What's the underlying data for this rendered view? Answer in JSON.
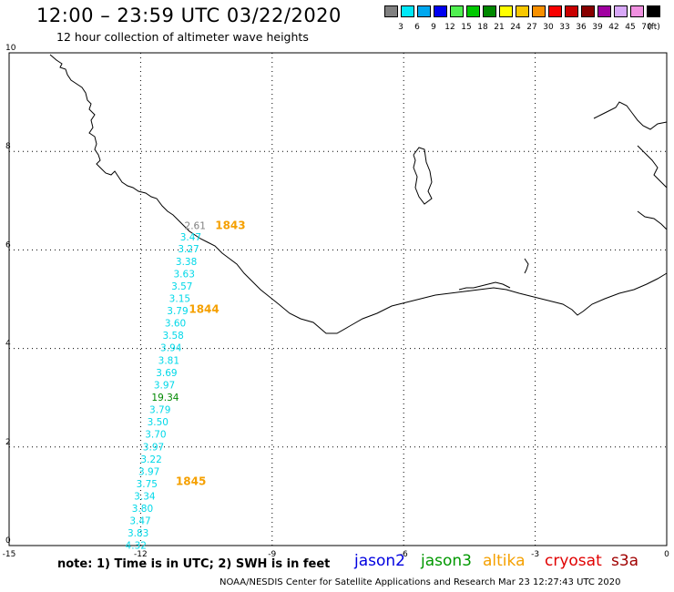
{
  "header": {
    "title": "12:00 – 23:59 UTC 03/22/2020",
    "subtitle": "12 hour collection of altimeter wave heights"
  },
  "legend": {
    "unit": "(ft)",
    "bins": [
      {
        "label": "3",
        "color": "#808080"
      },
      {
        "label": "6",
        "color": "#00e8f8"
      },
      {
        "label": "9",
        "color": "#00a8f0"
      },
      {
        "label": "12",
        "color": "#0000f0"
      },
      {
        "label": "15",
        "color": "#50f050"
      },
      {
        "label": "18",
        "color": "#00c800"
      },
      {
        "label": "21",
        "color": "#008800"
      },
      {
        "label": "24",
        "color": "#ffff00"
      },
      {
        "label": "27",
        "color": "#f8c800"
      },
      {
        "label": "30",
        "color": "#f89000"
      },
      {
        "label": "33",
        "color": "#f80000"
      },
      {
        "label": "36",
        "color": "#c80000"
      },
      {
        "label": "39",
        "color": "#880000"
      },
      {
        "label": "42",
        "color": "#a000a0"
      },
      {
        "label": "45",
        "color": "#d8a8f8"
      },
      {
        "label": "70",
        "color": "#f090e0"
      },
      {
        "label": "",
        "color": "#000000"
      }
    ]
  },
  "map": {
    "lon_ticks": [
      "-15",
      "-12",
      "-9",
      "-6",
      "-3",
      "0"
    ],
    "lat_ticks": [
      "0",
      "2",
      "4",
      "6",
      "8",
      "10"
    ],
    "lon_range": [
      -15,
      0
    ],
    "lat_range": [
      0,
      10
    ],
    "grid": "dotted",
    "pass_times": [
      {
        "label": "1843",
        "lon": -10.3,
        "lat": 6.5
      },
      {
        "label": "1844",
        "lon": -10.9,
        "lat": 4.8
      },
      {
        "label": "1845",
        "lon": -11.2,
        "lat": 1.3
      }
    ],
    "swh_readings": [
      {
        "value": "2.61",
        "lon": -11.0,
        "lat": 6.5,
        "color": "#808080"
      },
      {
        "value": "3.47",
        "lon": -11.1,
        "lat": 6.27,
        "color": "#00d8e8"
      },
      {
        "value": "3.27",
        "lon": -11.15,
        "lat": 6.03,
        "color": "#00d8e8"
      },
      {
        "value": "3.38",
        "lon": -11.2,
        "lat": 5.77,
        "color": "#00d8e8"
      },
      {
        "value": "3.63",
        "lon": -11.25,
        "lat": 5.52,
        "color": "#00d8e8"
      },
      {
        "value": "3.57",
        "lon": -11.3,
        "lat": 5.27,
        "color": "#00d8e8"
      },
      {
        "value": "3.15",
        "lon": -11.35,
        "lat": 5.02,
        "color": "#00d8e8"
      },
      {
        "value": "3.79",
        "lon": -11.4,
        "lat": 4.77,
        "color": "#00d8e8"
      },
      {
        "value": "3.60",
        "lon": -11.45,
        "lat": 4.52,
        "color": "#00d8e8"
      },
      {
        "value": "3.58",
        "lon": -11.5,
        "lat": 4.27,
        "color": "#00d8e8"
      },
      {
        "value": "3.94",
        "lon": -11.55,
        "lat": 4.02,
        "color": "#00d8e8"
      },
      {
        "value": "3.81",
        "lon": -11.6,
        "lat": 3.76,
        "color": "#00d8e8"
      },
      {
        "value": "3.69",
        "lon": -11.65,
        "lat": 3.51,
        "color": "#00d8e8"
      },
      {
        "value": "3.97",
        "lon": -11.7,
        "lat": 3.26,
        "color": "#00d8e8"
      },
      {
        "value": "19.34",
        "lon": -11.75,
        "lat": 3.01,
        "color": "#008800"
      },
      {
        "value": "3.79",
        "lon": -11.8,
        "lat": 2.76,
        "color": "#00d8e8"
      },
      {
        "value": "3.50",
        "lon": -11.85,
        "lat": 2.51,
        "color": "#00d8e8"
      },
      {
        "value": "3.70",
        "lon": -11.9,
        "lat": 2.26,
        "color": "#00d8e8"
      },
      {
        "value": "3.97",
        "lon": -11.95,
        "lat": 2.01,
        "color": "#00d8e8"
      },
      {
        "value": "3.22",
        "lon": -12.0,
        "lat": 1.76,
        "color": "#00d8e8"
      },
      {
        "value": "3.97",
        "lon": -12.05,
        "lat": 1.51,
        "color": "#00d8e8"
      },
      {
        "value": "3.75",
        "lon": -12.1,
        "lat": 1.26,
        "color": "#00d8e8"
      },
      {
        "value": "3.34",
        "lon": -12.15,
        "lat": 1.01,
        "color": "#00d8e8"
      },
      {
        "value": "3.80",
        "lon": -12.2,
        "lat": 0.76,
        "color": "#00d8e8"
      },
      {
        "value": "3.47",
        "lon": -12.25,
        "lat": 0.51,
        "color": "#00d8e8"
      },
      {
        "value": "3.83",
        "lon": -12.3,
        "lat": 0.26,
        "color": "#00d8e8"
      },
      {
        "value": "4.32",
        "lon": -12.35,
        "lat": 0.01,
        "color": "#00d8e8"
      }
    ]
  },
  "footer": {
    "note": "note: 1) Time is in UTC; 2) SWH is in feet",
    "satellites": [
      {
        "name": "jason2",
        "color": "#0000e0"
      },
      {
        "name": "jason3",
        "color": "#009800"
      },
      {
        "name": "altika",
        "color": "#f5a000"
      },
      {
        "name": "cryosat",
        "color": "#e00000"
      },
      {
        "name": "s3a",
        "color": "#a00000"
      }
    ],
    "credit": "NOAA/NESDIS Center for Satellite Applications and Research    Mar 23 12:27:43 UTC 2020"
  }
}
